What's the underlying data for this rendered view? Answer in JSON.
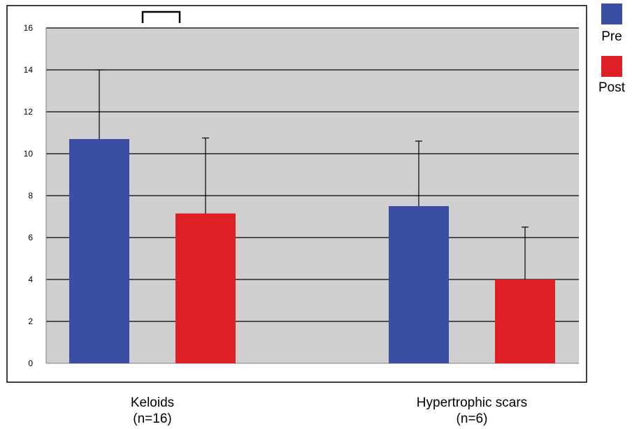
{
  "chart_data": {
    "type": "bar",
    "categories": [
      "Keloids",
      "Hypertrophic scars"
    ],
    "category_sublabels": [
      "(n=16)",
      "(n=6)"
    ],
    "series": [
      {
        "name": "Pre",
        "color": "#3a4fa3",
        "values": [
          10.7,
          7.5
        ],
        "errors": [
          3.3,
          3.1
        ]
      },
      {
        "name": "Post",
        "color": "#df1f26",
        "values": [
          7.15,
          4.0
        ],
        "errors": [
          3.6,
          2.5
        ]
      }
    ],
    "yticks": [
      0,
      2,
      4,
      6,
      8,
      10,
      12,
      14,
      16
    ],
    "ylim": [
      0,
      16
    ],
    "grid": true,
    "legend_position": "right-top",
    "plot_background": "#cfcfcf"
  }
}
